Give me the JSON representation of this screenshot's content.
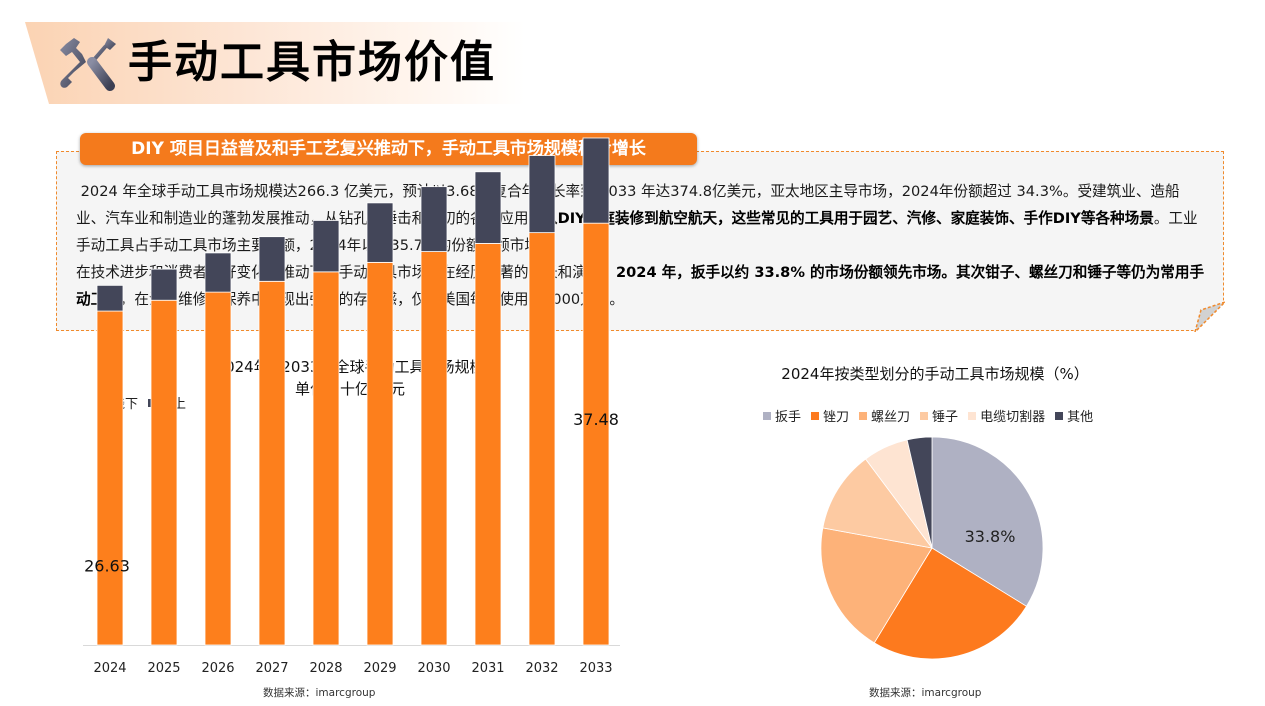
{
  "header": {
    "title": "手动工具市场价值",
    "icon": "tools-icon"
  },
  "info": {
    "label": "DIY 项目日益普及和手工艺复兴推动下，手动工具市场规模稳步增长",
    "paragraph1": [
      {
        "text": "2024 年全球手动工具市场规模达266.3 亿美元，预计以3.68%复合年增长率到 2033 年达374.8亿美元，亚太地区主导市场，2024年份额超过 34.3%。受建筑业、造船业、汽车业和制造业的蓬勃发展推动，从钻孔到锤击和锯切的各种应用，",
        "bold": false
      },
      {
        "text": "从DIY家庭装修到航空航天，这些常见的工具用于园艺、汽修、家庭装饰、手作DIY等各种场景",
        "bold": true
      },
      {
        "text": "。工业手动工具占手动工具市场主要份额，2024年以约35.7%的份额引领市场。",
        "bold": false
      }
    ],
    "paragraph2": [
      {
        "text": "在技术进步和消费者偏好变化的推动下，手动工具市场正在经历显著的增长和演变。",
        "bold": false
      },
      {
        "text": "2024 年，扳手以约 33.8% 的市场份额领先市场。其次钳子、螺丝刀和锤子等仍为常用手动工具",
        "bold": true
      },
      {
        "text": "，在汽车维修和保养中表现出强大的存在感，仅在美国每年使用约2000万台。",
        "bold": false
      }
    ]
  },
  "colors": {
    "accent": "#f47a1c",
    "dark": "#434659",
    "offline": "#fd7f1c",
    "online": "#434659"
  },
  "chart_data": [
    {
      "type": "bar",
      "stacked": true,
      "title": "2024年~2033年全球手动工具市场规模",
      "subtitle": "单位：十亿/美元",
      "categories": [
        "2024",
        "2025",
        "2026",
        "2027",
        "2028",
        "2029",
        "2030",
        "2031",
        "2032",
        "2033"
      ],
      "series": [
        {
          "name": "线下",
          "color": "#fd7f1c",
          "values": [
            24.7,
            25.5,
            26.1,
            26.9,
            27.6,
            28.3,
            29.1,
            29.7,
            30.5,
            31.2
          ]
        },
        {
          "name": "线上",
          "color": "#434659",
          "values": [
            1.9,
            2.3,
            2.9,
            3.3,
            3.8,
            4.4,
            4.8,
            5.3,
            5.7,
            6.3
          ]
        }
      ],
      "totals": [
        26.63,
        27.8,
        29.0,
        30.2,
        31.4,
        32.7,
        33.9,
        35.0,
        36.2,
        37.48
      ],
      "data_labels": [
        {
          "category": "2024",
          "text": "26.63"
        },
        {
          "category": "2033",
          "text": "37.48"
        }
      ],
      "ylim": [
        21.8,
        37.48
      ],
      "y_axis_visible": false,
      "grid": false,
      "legend": "top-left",
      "xlabel": "",
      "ylabel": "",
      "source": "数据来源：imarcgroup"
    },
    {
      "type": "pie",
      "title": "2024年按类型划分的手动工具市场规模（%）",
      "categories": [
        "扳手",
        "锉刀",
        "螺丝刀",
        "锤子",
        "电缆切割器",
        "其他"
      ],
      "values": [
        33.8,
        24.9,
        19.2,
        11.9,
        6.6,
        3.6
      ],
      "colors": [
        "#afb1c3",
        "#fd7a1e",
        "#fdb279",
        "#fdcaa2",
        "#fee4d2",
        "#434659"
      ],
      "data_labels": [
        {
          "category": "扳手",
          "text": "33.8%"
        }
      ],
      "legend": "top",
      "source": "数据来源：imarcgroup"
    }
  ]
}
